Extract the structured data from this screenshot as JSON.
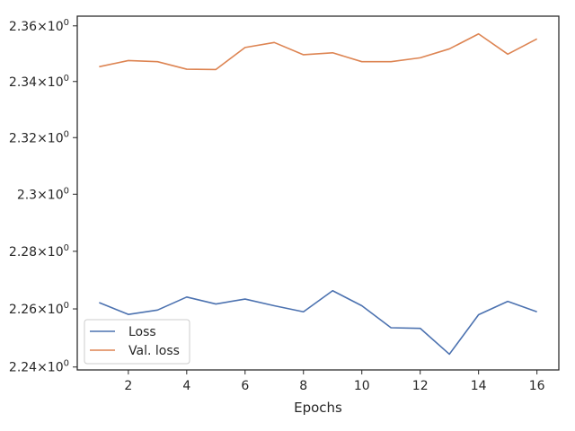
{
  "chart_data": {
    "type": "line",
    "title": "",
    "xlabel": "Epochs",
    "ylabel": "",
    "yscale": "log",
    "xlim": [
      0.25,
      16.75
    ],
    "ylim": [
      2.239,
      2.3635
    ],
    "grid": false,
    "legend_position": "lower-left",
    "x": [
      1,
      2,
      3,
      4,
      5,
      6,
      7,
      8,
      9,
      10,
      11,
      12,
      13,
      14,
      15,
      16
    ],
    "x_ticks": [
      2,
      4,
      6,
      8,
      10,
      12,
      14,
      16
    ],
    "x_tick_labels": [
      "2",
      "4",
      "6",
      "8",
      "10",
      "12",
      "14",
      "16"
    ],
    "y_ticks": [
      2.24,
      2.26,
      2.28,
      2.3,
      2.32,
      2.34,
      2.36
    ],
    "y_tick_labels": [
      {
        "mantissa": "2.24",
        "base": "10",
        "exp": "0"
      },
      {
        "mantissa": "2.26",
        "base": "10",
        "exp": "0"
      },
      {
        "mantissa": "2.28",
        "base": "10",
        "exp": "0"
      },
      {
        "mantissa": "2.3",
        "base": "10",
        "exp": "0"
      },
      {
        "mantissa": "2.32",
        "base": "10",
        "exp": "0"
      },
      {
        "mantissa": "2.34",
        "base": "10",
        "exp": "0"
      },
      {
        "mantissa": "2.36",
        "base": "10",
        "exp": "0"
      }
    ],
    "series": [
      {
        "name": "Loss",
        "color": "#4c72b0",
        "values": [
          2.2622,
          2.2581,
          2.2596,
          2.2641,
          2.2617,
          2.2634,
          2.2611,
          2.259,
          2.2663,
          2.2611,
          2.2535,
          2.2533,
          2.2444,
          2.258,
          2.2626,
          2.259
        ]
      },
      {
        "name": "Val. loss",
        "color": "#dd8452",
        "values": [
          2.3453,
          2.3475,
          2.3471,
          2.3444,
          2.3443,
          2.3522,
          2.354,
          2.3496,
          2.3503,
          2.3471,
          2.3471,
          2.3485,
          2.3517,
          2.3571,
          2.3498,
          2.3553
        ]
      }
    ]
  }
}
